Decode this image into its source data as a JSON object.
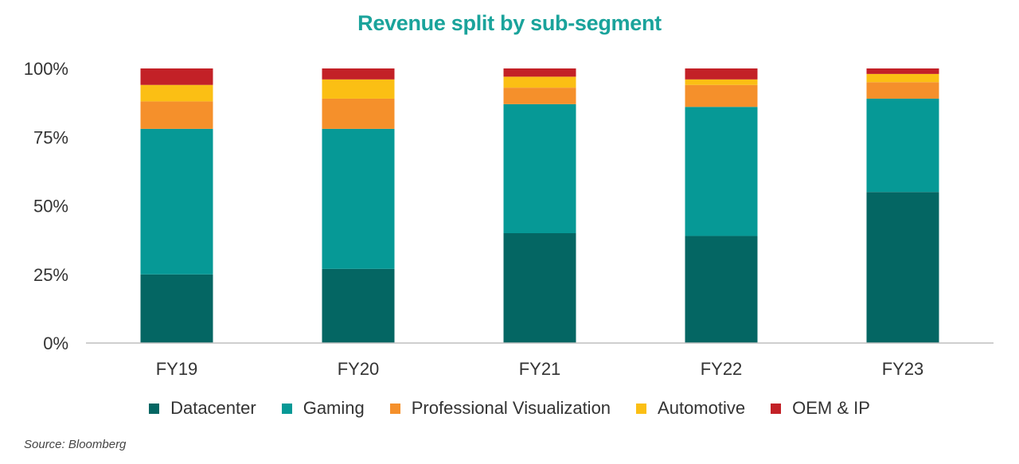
{
  "chart_data": {
    "type": "bar",
    "stacked": true,
    "title": "Revenue split by sub-segment",
    "xlabel": "",
    "ylabel": "",
    "ylim": [
      0,
      100
    ],
    "yticks": [
      "0%",
      "25%",
      "50%",
      "75%",
      "100%"
    ],
    "categories": [
      "FY19",
      "FY20",
      "FY21",
      "FY22",
      "FY23"
    ],
    "series": [
      {
        "name": "Datacenter",
        "color": "#046663",
        "values": [
          25,
          27,
          40,
          39,
          55
        ]
      },
      {
        "name": "Gaming",
        "color": "#069996",
        "values": [
          53,
          51,
          47,
          47,
          34
        ]
      },
      {
        "name": "Professional Visualization",
        "color": "#f5902b",
        "values": [
          10,
          11,
          6,
          8,
          6
        ]
      },
      {
        "name": "Automotive",
        "color": "#fbbf14",
        "values": [
          6,
          7,
          4,
          2,
          3
        ]
      },
      {
        "name": "OEM & IP",
        "color": "#c32127",
        "values": [
          6,
          4,
          3,
          4,
          2
        ]
      }
    ],
    "grid": false,
    "legend_position": "bottom"
  },
  "source": "Source: Bloomberg"
}
